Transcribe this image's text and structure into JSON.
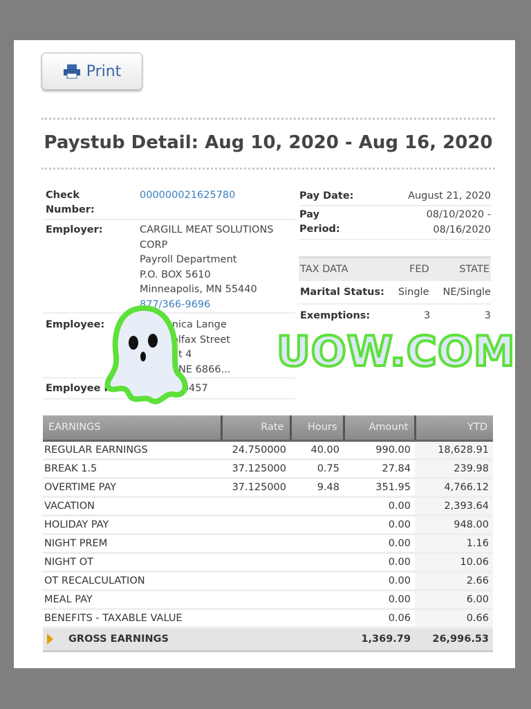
{
  "print_label": "Print",
  "title": "Paystub Detail: Aug 10, 2020 - Aug 16, 2020",
  "left": {
    "check_label_1": "Check",
    "check_label_2": "Number:",
    "check_number": "000000021625780",
    "employer_label": "Employer:",
    "employer_lines": [
      "CARGILL MEAT SOLUTIONS",
      "CORP",
      "Payroll Department",
      "P.O. BOX 5610",
      "Minneapolis, MN 55440"
    ],
    "employer_phone": "877/366-9696",
    "employee_label": "Employee:",
    "employee_lines": [
      "...nica Lange",
      "...olfax Street",
      "...nt 4",
      "..., NE 6866..."
    ],
    "employee_id_label": "Employee ID:",
    "employee_id": "...0457"
  },
  "right": {
    "pay_date_label": "Pay Date:",
    "pay_date": "August 21, 2020",
    "pay_period_label_1": "Pay",
    "pay_period_label_2": "Period:",
    "pay_period_1": "08/10/2020 -",
    "pay_period_2": "08/16/2020",
    "tax_header": [
      "TAX DATA",
      "FED",
      "STATE"
    ],
    "marital_label": "Marital Status:",
    "marital_fed": "Single",
    "marital_state": "NE/Single",
    "exemptions_label": "Exemptions:",
    "exemptions_fed": "3",
    "exemptions_state": "3"
  },
  "earnings": {
    "columns": [
      "EARNINGS",
      "Rate",
      "Hours",
      "Amount",
      "YTD"
    ],
    "rows": [
      [
        "REGULAR EARNINGS",
        "24.750000",
        "40.00",
        "990.00",
        "18,628.91"
      ],
      [
        "BREAK 1.5",
        "37.125000",
        "0.75",
        "27.84",
        "239.98"
      ],
      [
        "OVERTIME PAY",
        "37.125000",
        "9.48",
        "351.95",
        "4,766.12"
      ],
      [
        "VACATION",
        "",
        "",
        "0.00",
        "2,393.64"
      ],
      [
        "HOLIDAY PAY",
        "",
        "",
        "0.00",
        "948.00"
      ],
      [
        "NIGHT PREM",
        "",
        "",
        "0.00",
        "1.16"
      ],
      [
        "NIGHT OT",
        "",
        "",
        "0.00",
        "10.06"
      ],
      [
        "OT RECALCULATION",
        "",
        "",
        "0.00",
        "2.66"
      ],
      [
        "MEAL PAY",
        "",
        "",
        "0.00",
        "6.00"
      ],
      [
        "BENEFITS - TAXABLE VALUE",
        "",
        "",
        "0.06",
        "0.66"
      ]
    ],
    "total": {
      "label": "GROSS EARNINGS",
      "amount": "1,369.79",
      "ytd": "26,996.53"
    }
  },
  "watermark": "UOW.COM"
}
